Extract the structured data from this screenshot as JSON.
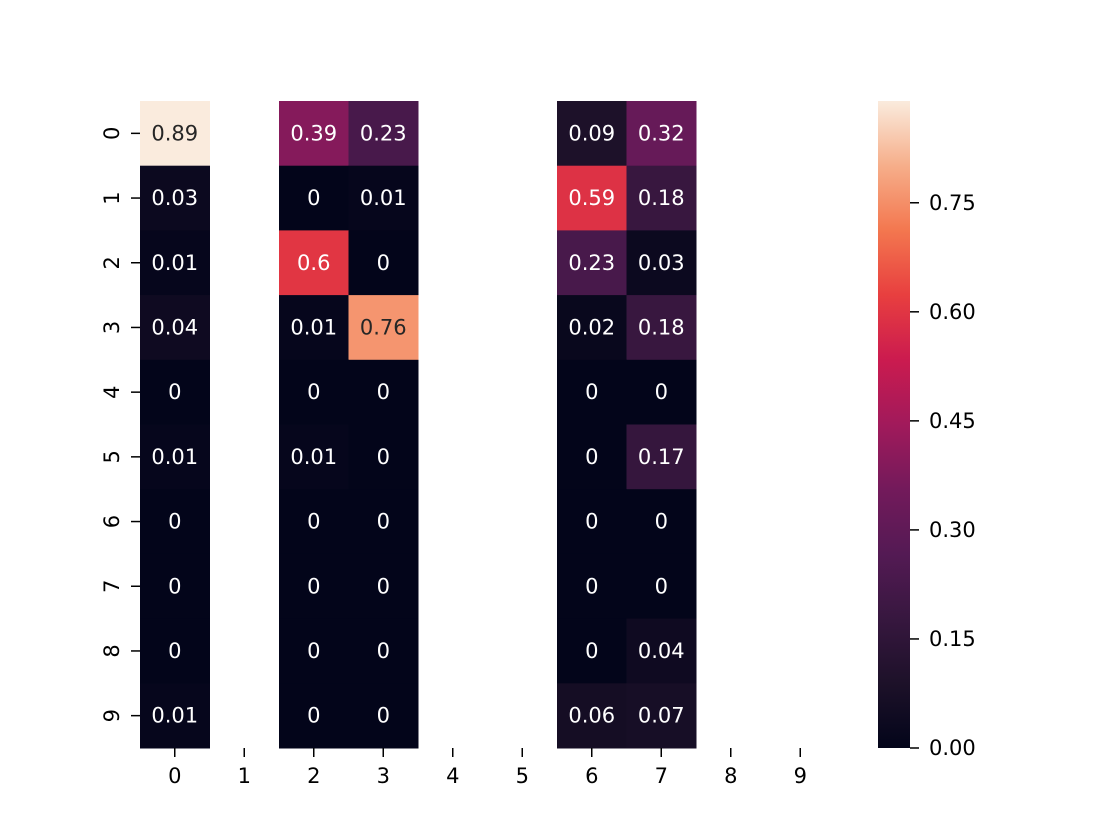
{
  "chart_data": {
    "type": "heatmap",
    "title": "",
    "xlabel": "",
    "ylabel": "",
    "x_categories": [
      "0",
      "1",
      "2",
      "3",
      "4",
      "5",
      "6",
      "7",
      "8",
      "9"
    ],
    "y_categories": [
      "0",
      "1",
      "2",
      "3",
      "4",
      "5",
      "6",
      "7",
      "8",
      "9"
    ],
    "values": [
      [
        0.89,
        null,
        0.39,
        0.23,
        null,
        null,
        0.09,
        0.32,
        null,
        null
      ],
      [
        0.03,
        null,
        0,
        0.01,
        null,
        null,
        0.59,
        0.18,
        null,
        null
      ],
      [
        0.01,
        null,
        0.6,
        0,
        null,
        null,
        0.23,
        0.03,
        null,
        null
      ],
      [
        0.04,
        null,
        0.01,
        0.76,
        null,
        null,
        0.02,
        0.18,
        null,
        null
      ],
      [
        0,
        null,
        0,
        0,
        null,
        null,
        0,
        0,
        null,
        null
      ],
      [
        0.01,
        null,
        0.01,
        0,
        null,
        null,
        0,
        0.17,
        null,
        null
      ],
      [
        0,
        null,
        0,
        0,
        null,
        null,
        0,
        0,
        null,
        null
      ],
      [
        0,
        null,
        0,
        0,
        null,
        null,
        0,
        0,
        null,
        null
      ],
      [
        0,
        null,
        0,
        0,
        null,
        null,
        0,
        0.04,
        null,
        null
      ],
      [
        0.01,
        null,
        0,
        0,
        null,
        null,
        0.06,
        0.07,
        null,
        null
      ]
    ],
    "color_range": [
      0,
      0.89
    ],
    "colormap": "rocket",
    "colorbar_ticks": [
      "0.00",
      "0.15",
      "0.30",
      "0.45",
      "0.60",
      "0.75"
    ],
    "annotations": true,
    "grid": false,
    "legend": "colorbar-right"
  }
}
